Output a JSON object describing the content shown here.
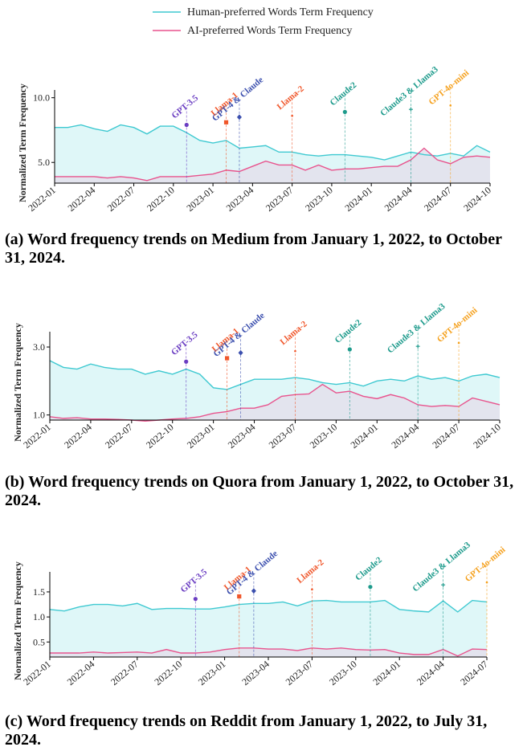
{
  "chart_data": [
    {
      "type": "line",
      "caption": "(a) Word frequency trends on Medium from January 1, 2022, to October 31, 2024.",
      "ylabel": "Normalized Term Frequency",
      "x": [
        "2022-01",
        "2022-02",
        "2022-03",
        "2022-04",
        "2022-05",
        "2022-06",
        "2022-07",
        "2022-08",
        "2022-09",
        "2022-10",
        "2022-11",
        "2022-12",
        "2023-01",
        "2023-02",
        "2023-03",
        "2023-04",
        "2023-05",
        "2023-06",
        "2023-07",
        "2023-08",
        "2023-09",
        "2023-10",
        "2023-11",
        "2023-12",
        "2024-01",
        "2024-02",
        "2024-03",
        "2024-04",
        "2024-05",
        "2024-06",
        "2024-07",
        "2024-08",
        "2024-09",
        "2024-10"
      ],
      "series": [
        {
          "name": "Human-preferred Words Term Frequency",
          "color": "#3fc9d1",
          "fill": "#d9f6f7",
          "values": [
            7.7,
            7.7,
            7.9,
            7.6,
            7.4,
            7.9,
            7.7,
            7.2,
            7.8,
            7.8,
            7.3,
            6.7,
            6.5,
            6.7,
            6.1,
            6.2,
            6.3,
            5.8,
            5.8,
            5.6,
            5.5,
            5.6,
            5.6,
            5.5,
            5.4,
            5.2,
            5.5,
            5.8,
            5.6,
            5.5,
            5.7,
            5.5,
            6.3,
            5.8
          ]
        },
        {
          "name": "AI-preferred Words Term Frequency",
          "color": "#e8538d",
          "fill": "#e4e0ec",
          "values": [
            3.9,
            3.9,
            3.9,
            3.9,
            3.8,
            3.9,
            3.8,
            3.6,
            3.9,
            3.9,
            3.9,
            4.0,
            4.1,
            4.4,
            4.3,
            4.7,
            5.1,
            4.8,
            4.8,
            4.4,
            4.8,
            4.4,
            4.5,
            4.5,
            4.6,
            4.7,
            4.7,
            5.2,
            6.1,
            5.2,
            4.9,
            5.4,
            5.5,
            5.4
          ]
        }
      ],
      "xlim": [
        "2022-01",
        "2024-10"
      ],
      "xticks": [
        "2022-01",
        "2022-04",
        "2022-07",
        "2022-10",
        "2023-01",
        "2023-04",
        "2023-07",
        "2023-10",
        "2024-01",
        "2024-04",
        "2024-07",
        "2024-10"
      ],
      "ylim": [
        3.4,
        10.6
      ],
      "yticks": [
        {
          "value": 5,
          "label": "5.0"
        },
        {
          "value": 10,
          "label": "10.0"
        }
      ],
      "annotations": [
        {
          "text": "GPT-3.5",
          "x": "2022-11",
          "y": 7.9,
          "color": "#6a3dc2",
          "marker": "circle"
        },
        {
          "text": "Llama-1",
          "x": "2023-02",
          "y": 8.1,
          "color": "#f0562a",
          "marker": "square"
        },
        {
          "text": "GPT-4 & Claude",
          "x": "2023-03",
          "y": 8.5,
          "color": "#3b4fae",
          "marker": "diamond"
        },
        {
          "text": "Llama-2",
          "x": "2023-07",
          "y": 8.6,
          "color": "#f0562a",
          "marker": "dot"
        },
        {
          "text": "Claude2",
          "x": "2023-11",
          "y": 8.9,
          "color": "#1c9a8b",
          "marker": "circle"
        },
        {
          "text": "Claude3 & Llama3",
          "x": "2024-04",
          "y": 9.1,
          "color": "#1c9a8b",
          "marker": "plus"
        },
        {
          "text": "GPT-4o-mini",
          "x": "2024-07",
          "y": 9.4,
          "color": "#f5a11e",
          "marker": "dot"
        }
      ]
    },
    {
      "type": "line",
      "caption": "(b) Word frequency trends on Quora from January 1, 2022, to October 31, 2024.",
      "ylabel": "Normalized Term Frequency",
      "x": [
        "2022-01",
        "2022-02",
        "2022-03",
        "2022-04",
        "2022-05",
        "2022-06",
        "2022-07",
        "2022-08",
        "2022-09",
        "2022-10",
        "2022-11",
        "2022-12",
        "2023-01",
        "2023-02",
        "2023-03",
        "2023-04",
        "2023-05",
        "2023-06",
        "2023-07",
        "2023-08",
        "2023-09",
        "2023-10",
        "2023-11",
        "2023-12",
        "2024-01",
        "2024-02",
        "2024-03",
        "2024-04",
        "2024-05",
        "2024-06",
        "2024-07",
        "2024-08",
        "2024-09",
        "2024-10"
      ],
      "series": [
        {
          "color": "#3fc9d1",
          "fill": "#d9f6f7",
          "values": [
            2.6,
            2.4,
            2.35,
            2.5,
            2.4,
            2.35,
            2.35,
            2.2,
            2.3,
            2.2,
            2.35,
            2.2,
            1.8,
            1.75,
            1.9,
            2.05,
            2.05,
            2.05,
            2.1,
            2.05,
            1.95,
            1.9,
            1.95,
            1.85,
            2.0,
            2.05,
            2.0,
            2.15,
            2.05,
            2.1,
            2.0,
            2.15,
            2.2,
            2.1
          ]
        },
        {
          "color": "#e8538d",
          "fill": "#e4e0ec",
          "values": [
            0.95,
            0.9,
            0.92,
            0.88,
            0.88,
            0.87,
            0.85,
            0.82,
            0.85,
            0.88,
            0.9,
            0.95,
            1.05,
            1.1,
            1.2,
            1.2,
            1.3,
            1.55,
            1.6,
            1.62,
            1.9,
            1.65,
            1.7,
            1.55,
            1.48,
            1.6,
            1.5,
            1.3,
            1.25,
            1.28,
            1.25,
            1.5,
            1.4,
            1.3
          ]
        }
      ],
      "xlim": [
        "2022-01",
        "2024-10"
      ],
      "xticks": [
        "2022-01",
        "2022-04",
        "2022-07",
        "2022-10",
        "2023-01",
        "2023-04",
        "2023-07",
        "2023-10",
        "2024-01",
        "2024-04",
        "2024-07",
        "2024-10"
      ],
      "ylim": [
        0.85,
        3.45
      ],
      "yticks": [
        {
          "value": 1,
          "label": "1.0"
        },
        {
          "value": 3,
          "label": "3.0"
        }
      ],
      "annotations": [
        {
          "text": "GPT-3.5",
          "x": "2022-11",
          "y": 2.57,
          "color": "#6a3dc2",
          "marker": "circle"
        },
        {
          "text": "Llama-1",
          "x": "2023-02",
          "y": 2.67,
          "color": "#f0562a",
          "marker": "square"
        },
        {
          "text": "GPT-4 & Claude",
          "x": "2023-03",
          "y": 2.83,
          "color": "#3b4fae",
          "marker": "diamond"
        },
        {
          "text": "Llama-2",
          "x": "2023-07",
          "y": 2.88,
          "color": "#f0562a",
          "marker": "dot"
        },
        {
          "text": "Claude2",
          "x": "2023-11",
          "y": 2.93,
          "color": "#1c9a8b",
          "marker": "circle"
        },
        {
          "text": "Claude3 & Llama3",
          "x": "2024-04",
          "y": 3.02,
          "color": "#1c9a8b",
          "marker": "plus"
        },
        {
          "text": "GPT-4o-mini",
          "x": "2024-07",
          "y": 3.12,
          "color": "#f5a11e",
          "marker": "dot"
        }
      ]
    },
    {
      "type": "line",
      "caption": "(c) Word frequency trends on Reddit from January 1, 2022, to July 31, 2024.",
      "ylabel": "Normalized Term Frequency",
      "x": [
        "2022-01",
        "2022-02",
        "2022-03",
        "2022-04",
        "2022-05",
        "2022-06",
        "2022-07",
        "2022-08",
        "2022-09",
        "2022-10",
        "2022-11",
        "2022-12",
        "2023-01",
        "2023-02",
        "2023-03",
        "2023-04",
        "2023-05",
        "2023-06",
        "2023-07",
        "2023-08",
        "2023-09",
        "2023-10",
        "2023-11",
        "2023-12",
        "2024-01",
        "2024-02",
        "2024-03",
        "2024-04",
        "2024-05",
        "2024-06",
        "2024-07"
      ],
      "series": [
        {
          "color": "#3fc9d1",
          "fill": "#d9f6f7",
          "values": [
            1.15,
            1.12,
            1.2,
            1.25,
            1.25,
            1.22,
            1.27,
            1.15,
            1.17,
            1.17,
            1.16,
            1.16,
            1.2,
            1.25,
            1.27,
            1.27,
            1.3,
            1.22,
            1.32,
            1.33,
            1.3,
            1.3,
            1.3,
            1.33,
            1.15,
            1.12,
            1.1,
            1.32,
            1.1,
            1.33,
            1.3
          ]
        },
        {
          "color": "#e8538d",
          "fill": "#e4e0ec",
          "values": [
            0.28,
            0.28,
            0.28,
            0.3,
            0.28,
            0.29,
            0.3,
            0.28,
            0.35,
            0.28,
            0.28,
            0.3,
            0.35,
            0.38,
            0.38,
            0.36,
            0.36,
            0.33,
            0.38,
            0.36,
            0.38,
            0.35,
            0.34,
            0.35,
            0.28,
            0.25,
            0.25,
            0.35,
            0.22,
            0.36,
            0.35
          ]
        }
      ],
      "xlim": [
        "2022-01",
        "2024-07"
      ],
      "xticks": [
        "2022-01",
        "2022-04",
        "2022-07",
        "2022-10",
        "2023-01",
        "2023-04",
        "2023-07",
        "2023-10",
        "2024-01",
        "2024-04",
        "2024-07"
      ],
      "ylim": [
        0.2,
        1.9
      ],
      "yticks": [
        0.5,
        {
          "value": 1,
          "label": "1.0"
        },
        1.5
      ],
      "annotations": [
        {
          "text": "GPT-3.5",
          "x": "2022-11",
          "y": 1.36,
          "color": "#6a3dc2",
          "marker": "circle"
        },
        {
          "text": "Llama-1",
          "x": "2023-02",
          "y": 1.41,
          "color": "#f0562a",
          "marker": "square"
        },
        {
          "text": "GPT-4 & Claude",
          "x": "2023-03",
          "y": 1.52,
          "color": "#3b4fae",
          "marker": "diamond"
        },
        {
          "text": "Llama-2",
          "x": "2023-07",
          "y": 1.55,
          "color": "#f0562a",
          "marker": "dot"
        },
        {
          "text": "Claude2",
          "x": "2023-11",
          "y": 1.6,
          "color": "#1c9a8b",
          "marker": "circle"
        },
        {
          "text": "Claude3 & Llama3",
          "x": "2024-04",
          "y": 1.64,
          "color": "#1c9a8b",
          "marker": "plus"
        },
        {
          "text": "GPT-4o-mini",
          "x": "2024-07",
          "y": 1.69,
          "color": "#f5a11e",
          "marker": "dot"
        }
      ]
    }
  ]
}
